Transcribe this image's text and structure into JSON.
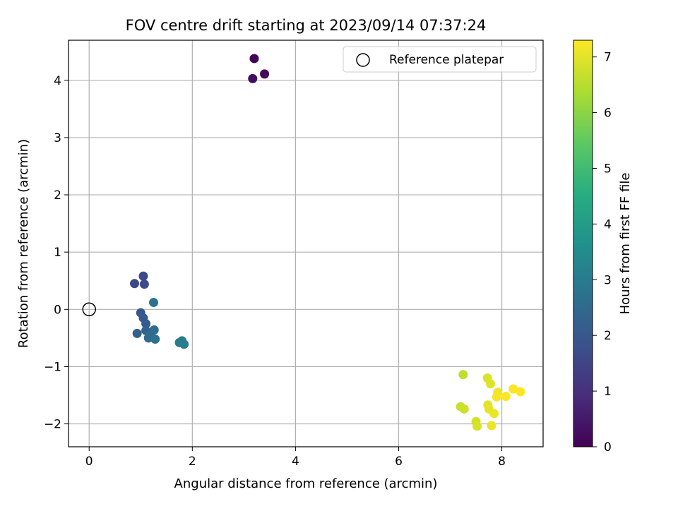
{
  "chart_data": {
    "type": "scatter",
    "title": "FOV centre drift starting at 2023/09/14 07:37:24",
    "xlabel": "Angular distance from reference (arcmin)",
    "ylabel": "Rotation from reference (arcmin)",
    "xlim": [
      -0.4,
      8.8
    ],
    "ylim": [
      -2.4,
      4.7
    ],
    "xticks": [
      0,
      2,
      4,
      6,
      8
    ],
    "yticks": [
      -2,
      -1,
      0,
      1,
      2,
      3,
      4
    ],
    "xtick_labels": [
      "0",
      "2",
      "4",
      "6",
      "8"
    ],
    "ytick_labels": [
      "−2",
      "−1",
      "0",
      "1",
      "2",
      "3",
      "4"
    ],
    "grid": true,
    "legend": {
      "placement": "top-right",
      "entries": [
        "Reference platepar"
      ]
    },
    "reference_point": {
      "x": 0,
      "y": 0
    },
    "colorbar": {
      "label": "Hours from first FF file",
      "range": [
        0,
        7.3
      ],
      "ticks": [
        0,
        1,
        2,
        3,
        4,
        5,
        6,
        7
      ],
      "tick_labels": [
        "0",
        "1",
        "2",
        "3",
        "4",
        "5",
        "6",
        "7"
      ],
      "colormap": "viridis"
    },
    "points": [
      {
        "x": 3.2,
        "y": 4.38,
        "t": 0.05
      },
      {
        "x": 3.4,
        "y": 4.11,
        "t": 0.15
      },
      {
        "x": 3.17,
        "y": 4.03,
        "t": 0.25
      },
      {
        "x": 0.88,
        "y": 0.45,
        "t": 1.6
      },
      {
        "x": 1.05,
        "y": 0.58,
        "t": 1.65
      },
      {
        "x": 1.07,
        "y": 0.44,
        "t": 1.7
      },
      {
        "x": 1.0,
        "y": -0.06,
        "t": 2.0
      },
      {
        "x": 1.05,
        "y": -0.15,
        "t": 2.05
      },
      {
        "x": 1.1,
        "y": -0.25,
        "t": 2.1
      },
      {
        "x": 0.93,
        "y": -0.42,
        "t": 2.2
      },
      {
        "x": 1.1,
        "y": -0.37,
        "t": 2.3
      },
      {
        "x": 1.18,
        "y": -0.43,
        "t": 2.4
      },
      {
        "x": 1.15,
        "y": -0.5,
        "t": 2.5
      },
      {
        "x": 1.26,
        "y": -0.36,
        "t": 2.6
      },
      {
        "x": 1.28,
        "y": -0.52,
        "t": 2.7
      },
      {
        "x": 1.25,
        "y": 0.12,
        "t": 2.8
      },
      {
        "x": 1.75,
        "y": -0.58,
        "t": 3.0
      },
      {
        "x": 1.8,
        "y": -0.55,
        "t": 3.05
      },
      {
        "x": 1.84,
        "y": -0.61,
        "t": 3.1
      },
      {
        "x": 7.25,
        "y": -1.14,
        "t": 6.6
      },
      {
        "x": 7.2,
        "y": -1.7,
        "t": 6.7
      },
      {
        "x": 7.27,
        "y": -1.74,
        "t": 6.75
      },
      {
        "x": 7.5,
        "y": -1.96,
        "t": 6.8
      },
      {
        "x": 7.52,
        "y": -2.04,
        "t": 6.85
      },
      {
        "x": 7.72,
        "y": -1.2,
        "t": 6.9
      },
      {
        "x": 7.78,
        "y": -1.3,
        "t": 6.95
      },
      {
        "x": 7.73,
        "y": -1.67,
        "t": 7.0
      },
      {
        "x": 7.75,
        "y": -1.74,
        "t": 7.05
      },
      {
        "x": 7.85,
        "y": -1.82,
        "t": 7.1
      },
      {
        "x": 7.8,
        "y": -2.03,
        "t": 7.1
      },
      {
        "x": 7.92,
        "y": -1.45,
        "t": 7.15
      },
      {
        "x": 7.9,
        "y": -1.53,
        "t": 7.2
      },
      {
        "x": 8.08,
        "y": -1.52,
        "t": 7.25
      },
      {
        "x": 8.22,
        "y": -1.39,
        "t": 7.25
      },
      {
        "x": 8.36,
        "y": -1.44,
        "t": 7.3
      }
    ]
  }
}
